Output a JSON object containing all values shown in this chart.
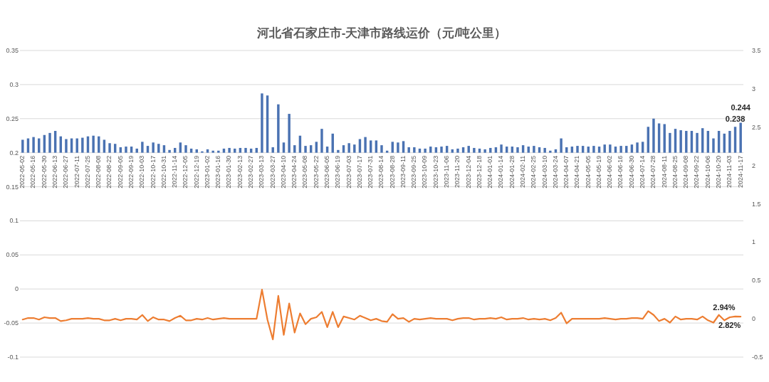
{
  "chart_data": {
    "type": "bar",
    "title": "河北省石家庄市-天津市路线运价（元/吨公里）",
    "categories": [
      "2022-05-02",
      null,
      "2022-05-16",
      null,
      "2022-05-30",
      null,
      "2022-06-13",
      null,
      "2022-06-27",
      null,
      "2022-07-11",
      null,
      "2022-07-25",
      null,
      "2022-08-08",
      null,
      "2022-08-22",
      null,
      "2022-09-05",
      null,
      "2022-09-19",
      null,
      "2022-10-03",
      null,
      "2022-10-17",
      null,
      "2022-10-31",
      null,
      "2022-11-14",
      null,
      "2022-12-05",
      null,
      "2022-12-19",
      null,
      "2023-01-02",
      null,
      "2023-01-16",
      null,
      "2023-01-30",
      null,
      "2023-02-13",
      null,
      "2023-02-27",
      null,
      "2023-03-13",
      null,
      "2023-03-27",
      null,
      "2023-04-10",
      null,
      "2023-04-24",
      null,
      "2023-05-08",
      null,
      "2023-05-22",
      null,
      "2023-06-05",
      null,
      "2023-06-19",
      null,
      "2023-07-03",
      null,
      "2023-07-17",
      null,
      "2023-07-31",
      null,
      "2023-08-14",
      null,
      "2023-08-28",
      null,
      "2023-09-11",
      null,
      "2023-09-25",
      null,
      "2023-10-09",
      null,
      "2023-10-23",
      null,
      "2023-11-06",
      null,
      "2023-11-20",
      null,
      "2023-12-04",
      null,
      "2023-12-18",
      null,
      "2024-01-01",
      null,
      "2024-01-14",
      null,
      "2024-01-28",
      null,
      "2024-02-11",
      null,
      "2024-02-25",
      null,
      "2024-03-10",
      null,
      "2024-03-24",
      null,
      "2024-04-07",
      null,
      "2024-04-21",
      null,
      "2024-05-05",
      null,
      "2024-05-19",
      null,
      "2024-06-02",
      null,
      "2024-06-16",
      null,
      "2024-06-30",
      null,
      "2024-07-14",
      null,
      "2024-07-28",
      null,
      "2024-08-11",
      null,
      "2024-08-25",
      null,
      "2024-09-08",
      null,
      "2024-09-22",
      null,
      "2024-10-06",
      null,
      "2024-10-20",
      null,
      "2024-11-03",
      null,
      "2024-11-17"
    ],
    "series": [
      {
        "color": "#4a72b2",
        "base": [
          0.2,
          0.2,
          0.2,
          0.2,
          0.2,
          0.2,
          0.2,
          0.2,
          0.2,
          0.2,
          0.2,
          0.2,
          0.2,
          0.2,
          0.2,
          0.2,
          0.2,
          0.2,
          0.2,
          0.2,
          0.2,
          0.2,
          0.2,
          0.2,
          0.2,
          0.2,
          0.2,
          0.2,
          0.2,
          0.2,
          0.2,
          0.2,
          0.2,
          0.2,
          0.2,
          0.2,
          0.2,
          0.2,
          0.2,
          0.2,
          0.2,
          0.2,
          0.2,
          0.2,
          0.2,
          0.2,
          0.2,
          0.2,
          0.2,
          0.2,
          0.2,
          0.2,
          0.2,
          0.2,
          0.2,
          0.2,
          0.2,
          0.2,
          0.2,
          0.2,
          0.2,
          0.2,
          0.2,
          0.2,
          0.2,
          0.2,
          0.2,
          0.2,
          0.2,
          0.2,
          0.2,
          0.2,
          0.2,
          0.2,
          0.2,
          0.2,
          0.2,
          0.2,
          0.2,
          0.2,
          0.2,
          0.2,
          0.2,
          0.2,
          0.2,
          0.2,
          0.2,
          0.2,
          0.2,
          0.2,
          0.2,
          0.2,
          0.2,
          0.2,
          0.2,
          0.2,
          0.2,
          0.2,
          0.2,
          0.2,
          0.2,
          0.2,
          0.2,
          0.2,
          0.2,
          0.2,
          0.2,
          0.2,
          0.2,
          0.2,
          0.2,
          0.2,
          0.2,
          0.2,
          0.2,
          0.2,
          0.2,
          0.2,
          0.2,
          0.2,
          0.2,
          0.2,
          0.2,
          0.2,
          0.2,
          0.2,
          0.2,
          0.2,
          0.2,
          0.2,
          0.2,
          0.2,
          0.2
        ],
        "values": [
          0.019,
          0.021,
          0.023,
          0.021,
          0.026,
          0.029,
          0.032,
          0.024,
          0.02,
          0.021,
          0.021,
          0.022,
          0.024,
          0.025,
          0.024,
          0.019,
          0.014,
          0.013,
          0.008,
          0.009,
          0.009,
          0.006,
          0.016,
          0.01,
          0.015,
          0.013,
          0.011,
          0.004,
          0.007,
          0.015,
          0.011,
          0.006,
          0.005,
          0.002,
          0.005,
          0.003,
          0.003,
          0.006,
          0.007,
          0.006,
          0.007,
          0.007,
          0.006,
          0.007,
          0.087,
          0.084,
          0.008,
          0.071,
          0.015,
          0.057,
          0.011,
          0.025,
          0.01,
          0.011,
          0.016,
          0.035,
          0.009,
          0.028,
          0.004,
          0.011,
          0.014,
          0.012,
          0.02,
          0.023,
          0.018,
          0.018,
          0.011,
          0.003,
          0.016,
          0.015,
          0.017,
          0.008,
          0.008,
          0.006,
          0.006,
          0.009,
          0.008,
          0.009,
          0.01,
          0.005,
          0.006,
          0.008,
          0.01,
          0.007,
          0.006,
          0.005,
          0.007,
          0.008,
          0.012,
          0.009,
          0.009,
          0.008,
          0.011,
          0.009,
          0.01,
          0.008,
          0.007,
          0.003,
          0.005,
          0.021,
          0.008,
          0.009,
          0.01,
          0.01,
          0.009,
          0.01,
          0.009,
          0.012,
          0.012,
          0.009,
          0.01,
          0.01,
          0.012,
          0.015,
          0.016,
          0.038,
          0.05,
          0.043,
          0.042,
          0.029,
          0.035,
          0.033,
          0.032,
          0.032,
          0.029,
          0.036,
          0.032,
          0.021,
          0.032,
          0.028,
          0.032,
          0.038,
          0.044
        ],
        "value_labels": [
          null,
          null,
          null,
          null,
          null,
          null,
          null,
          null,
          null,
          null,
          null,
          null,
          null,
          null,
          null,
          null,
          null,
          null,
          null,
          null,
          null,
          null,
          null,
          null,
          null,
          null,
          null,
          null,
          null,
          null,
          null,
          null,
          null,
          null,
          null,
          null,
          null,
          null,
          null,
          null,
          null,
          null,
          null,
          null,
          null,
          null,
          null,
          null,
          null,
          null,
          null,
          null,
          null,
          null,
          null,
          null,
          null,
          null,
          null,
          null,
          null,
          null,
          null,
          null,
          null,
          null,
          null,
          null,
          null,
          null,
          null,
          null,
          null,
          null,
          null,
          null,
          null,
          null,
          null,
          null,
          null,
          null,
          null,
          null,
          null,
          null,
          null,
          null,
          null,
          null,
          null,
          null,
          null,
          null,
          null,
          null,
          null,
          null,
          null,
          null,
          null,
          null,
          null,
          null,
          null,
          null,
          null,
          null,
          null,
          null,
          null,
          null,
          null,
          null,
          null,
          null,
          null,
          null,
          null,
          null,
          null,
          null,
          null,
          null,
          null,
          null,
          null,
          null,
          null,
          null,
          null,
          "0.238",
          "0.244"
        ]
      },
      {
        "type": "line",
        "axis": "y2",
        "color": "#ed7d31",
        "values": [
          -0.01,
          0.01,
          0.01,
          -0.01,
          0.02,
          0.01,
          0.01,
          -0.03,
          -0.02,
          0,
          0,
          0,
          0.01,
          0,
          0,
          -0.02,
          -0.02,
          0,
          -0.02,
          0,
          0,
          -0.01,
          0.05,
          -0.03,
          0.02,
          -0.01,
          -0.01,
          -0.03,
          0.01,
          0.04,
          -0.02,
          -0.02,
          0,
          -0.01,
          0.01,
          -0.01,
          0,
          0.01,
          0,
          0,
          0,
          0,
          0,
          0,
          0.38,
          -0.01,
          -0.27,
          0.3,
          -0.21,
          0.2,
          -0.18,
          0.07,
          -0.07,
          0,
          0.02,
          0.09,
          -0.11,
          0.09,
          -0.11,
          0.03,
          0.01,
          -0.01,
          0.04,
          0.01,
          -0.02,
          0,
          -0.03,
          -0.04,
          0.06,
          0,
          0.01,
          -0.04,
          0,
          -0.01,
          0,
          0.01,
          0,
          0,
          0,
          -0.02,
          0,
          0.01,
          0.01,
          -0.01,
          0,
          0,
          0.01,
          0,
          0.02,
          -0.01,
          0,
          0,
          0.01,
          -0.01,
          0,
          -0.01,
          0,
          -0.02,
          0.01,
          0.08,
          -0.06,
          0,
          0,
          0,
          0,
          0,
          0,
          0.01,
          0,
          -0.01,
          0,
          0,
          0.01,
          0.01,
          0,
          0.1,
          0.05,
          -0.03,
          0,
          -0.05,
          0.03,
          -0.01,
          0,
          0,
          -0.01,
          0.03,
          -0.02,
          -0.05,
          0.05,
          -0.02,
          0.02,
          0.0294,
          0.0282
        ],
        "value_labels": [
          null,
          null,
          null,
          null,
          null,
          null,
          null,
          null,
          null,
          null,
          null,
          null,
          null,
          null,
          null,
          null,
          null,
          null,
          null,
          null,
          null,
          null,
          null,
          null,
          null,
          null,
          null,
          null,
          null,
          null,
          null,
          null,
          null,
          null,
          null,
          null,
          null,
          null,
          null,
          null,
          null,
          null,
          null,
          null,
          null,
          null,
          null,
          null,
          null,
          null,
          null,
          null,
          null,
          null,
          null,
          null,
          null,
          null,
          null,
          null,
          null,
          null,
          null,
          null,
          null,
          null,
          null,
          null,
          null,
          null,
          null,
          null,
          null,
          null,
          null,
          null,
          null,
          null,
          null,
          null,
          null,
          null,
          null,
          null,
          null,
          null,
          null,
          null,
          null,
          null,
          null,
          null,
          null,
          null,
          null,
          null,
          null,
          null,
          null,
          null,
          null,
          null,
          null,
          null,
          null,
          null,
          null,
          null,
          null,
          null,
          null,
          null,
          null,
          null,
          null,
          null,
          null,
          null,
          null,
          null,
          null,
          null,
          null,
          null,
          null,
          null,
          null,
          null,
          null,
          null,
          null,
          "2.94%",
          "2.82%"
        ]
      }
    ],
    "ylim": [
      -0.1,
      0.35
    ],
    "yticks": [
      -0.1,
      -0.05,
      0,
      0.05,
      0.1,
      0.15,
      0.2,
      0.25,
      0.3,
      0.35
    ],
    "y2lim": [
      -0.5,
      3.5
    ],
    "y2ticks": [
      -0.5,
      0,
      0.5,
      1,
      1.5,
      2,
      2.5,
      3,
      3.5
    ],
    "grid": "y"
  }
}
